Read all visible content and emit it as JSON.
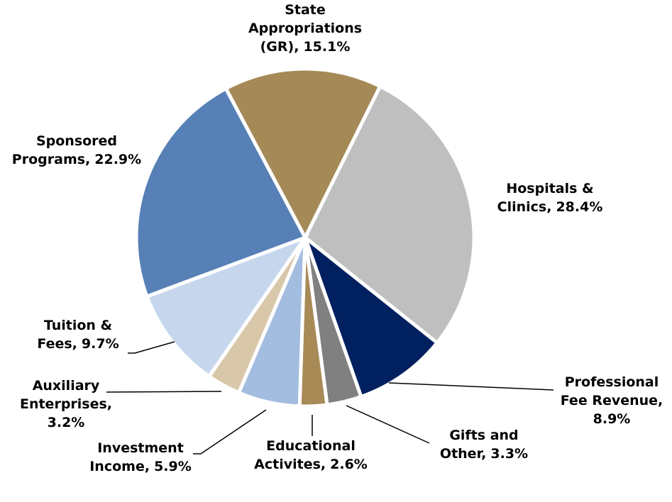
{
  "chart_data": {
    "type": "pie",
    "categories": [
      [
        "State",
        "Appropriations",
        "(GR),"
      ],
      [
        "Hospitals &",
        "Clinics,"
      ],
      [
        "Professional",
        "Fee Revenue,"
      ],
      [
        "Gifts and",
        "Other,"
      ],
      [
        "Educational",
        "Activites,"
      ],
      [
        "Investment",
        "Income,"
      ],
      [
        "Auxiliary",
        "Enterprises,"
      ],
      [
        "Tuition &",
        "Fees,"
      ],
      [
        "Sponsored",
        "Programs,"
      ]
    ],
    "values": [
      15.1,
      28.4,
      8.9,
      3.3,
      2.6,
      5.9,
      3.2,
      9.7,
      22.9
    ],
    "value_labels": [
      "15.1%",
      "28.4%",
      "8.9%",
      "3.3%",
      "2.6%",
      "5.9%",
      "3.2%",
      "9.7%",
      "22.9%"
    ],
    "colors": [
      "#a58a58",
      "#bfbfbf",
      "#002060",
      "#808080",
      "#a88a57",
      "#a3bde0",
      "#d8c7a9",
      "#c6d7ed",
      "#5680b6"
    ]
  }
}
